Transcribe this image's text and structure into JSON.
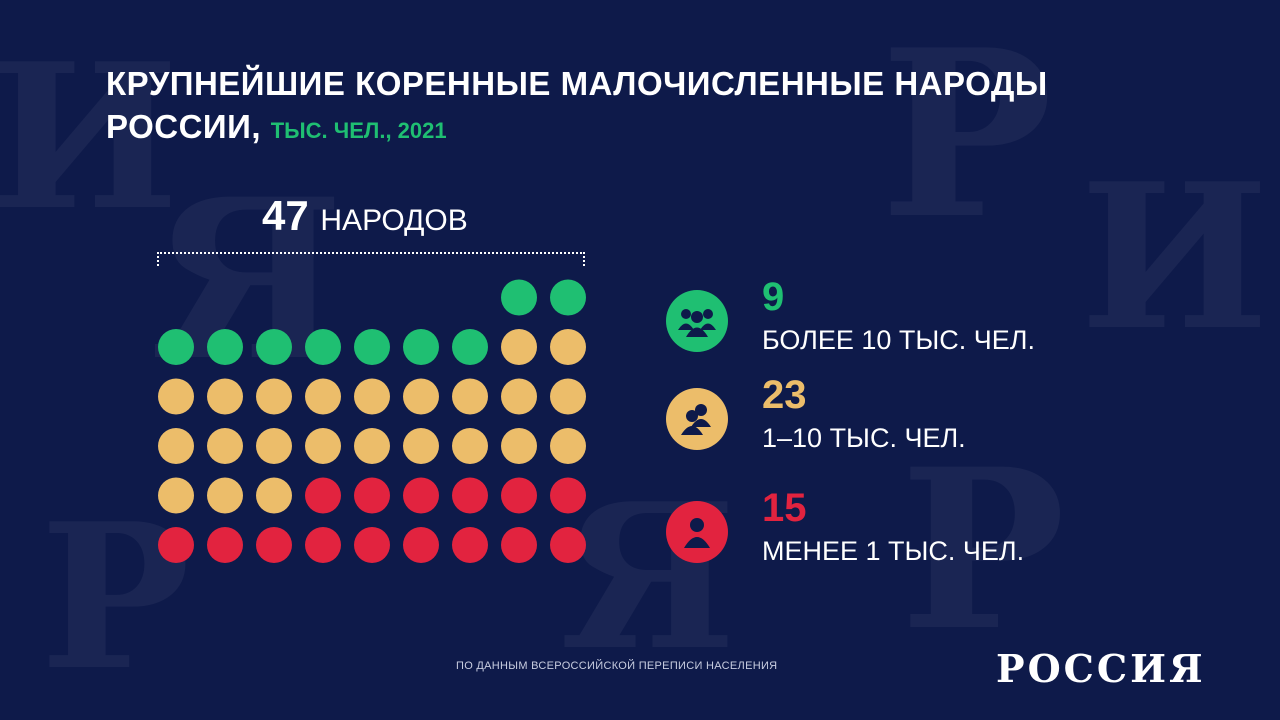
{
  "title": {
    "main": "КРУПНЕЙШИЕ КОРЕННЫЕ МАЛОЧИСЛЕННЫЕ НАРОДЫ РОССИИ,",
    "sub": "ТЫС. ЧЕЛ., 2021"
  },
  "total": {
    "value": "47",
    "unit": "НАРОДОВ"
  },
  "legend": [
    {
      "value": "9",
      "label": "БОЛЕЕ 10 ТЫС. ЧЕЛ.",
      "color": "#1fbf72",
      "icon": "group-icon"
    },
    {
      "value": "23",
      "label": "1–10 ТЫС. ЧЕЛ.",
      "color": "#ecbd6a",
      "icon": "pair-icon"
    },
    {
      "value": "15",
      "label": "МЕНЕЕ 1 ТЫС. ЧЕЛ.",
      "color": "#e2233f",
      "icon": "person-icon"
    }
  ],
  "chart_data": {
    "type": "table",
    "categories": [
      "БОЛЕЕ 10 ТЫС. ЧЕЛ.",
      "1–10 ТЫС. ЧЕЛ.",
      "МЕНЕЕ 1 ТЫС. ЧЕЛ."
    ],
    "values": [
      9,
      23,
      15
    ],
    "total": 47,
    "colors": [
      "#1fbf72",
      "#ecbd6a",
      "#e2233f"
    ]
  },
  "source": "ПО ДАННЫМ ВСЕРОССИЙСКОЙ ПЕРЕПИСИ НАСЕЛЕНИЯ",
  "logo": "РОССИЯ"
}
